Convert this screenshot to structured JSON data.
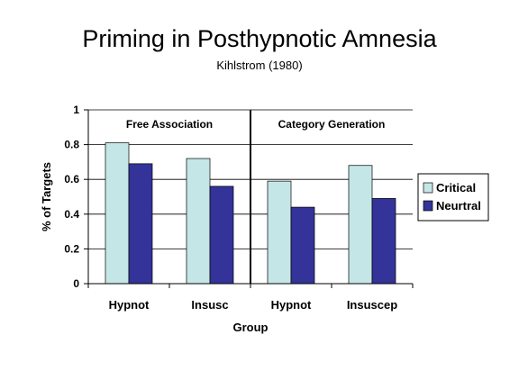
{
  "slide": {
    "title": "Priming in Posthypnotic Amnesia",
    "subtitle": "Kihlstrom (1980)"
  },
  "chart_data": {
    "type": "bar",
    "title": "Priming in Posthypnotic Amnesia",
    "subtitle": "Kihlstrom (1980)",
    "xlabel": "Group",
    "ylabel": "% of Targets",
    "ylim": [
      0,
      1
    ],
    "yticks": [
      "0",
      "0.2",
      "0.4",
      "0.6",
      "0.8",
      "1"
    ],
    "grid": true,
    "legend_position": "right",
    "categories": [
      "Hypnot",
      "Insusc",
      "Hypnot",
      "Insuscep"
    ],
    "panels": [
      "Free Association",
      "Category Generation"
    ],
    "series": [
      {
        "name": "Critical",
        "color": "#c5e6e6",
        "values": [
          0.81,
          0.72,
          0.59,
          0.68
        ]
      },
      {
        "name": "Neurtral",
        "color": "#333399",
        "values": [
          0.69,
          0.56,
          0.44,
          0.49
        ]
      }
    ]
  }
}
